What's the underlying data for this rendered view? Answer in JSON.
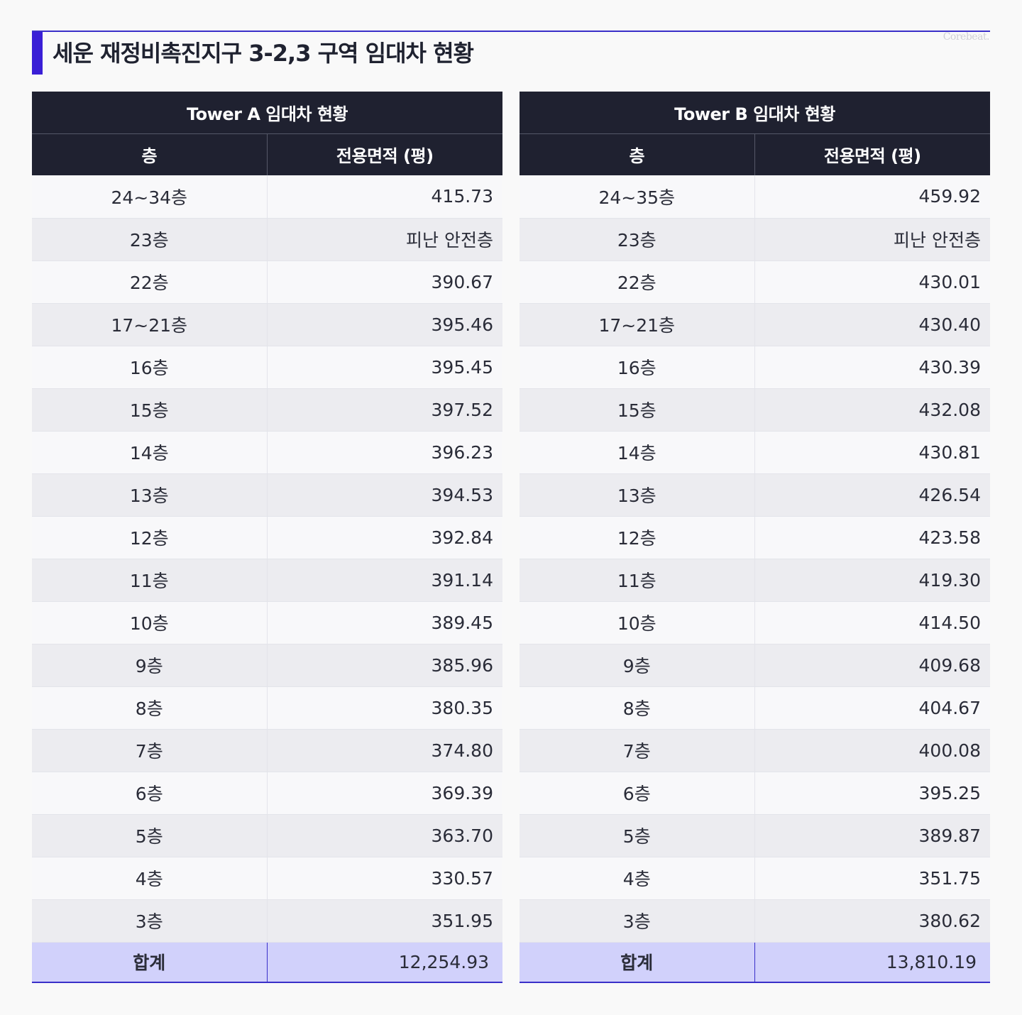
{
  "header": {
    "title": "세운 재정비촉진지구 3-2,3 구역 임대차 현황",
    "brand": "Corebeat.",
    "accent_color": "#3a1fd6"
  },
  "towers": [
    {
      "caption": "Tower A 임대차 현황",
      "columns": [
        "층",
        "전용면적 (평)"
      ],
      "rows": [
        [
          "24~34층",
          "415.73"
        ],
        [
          "23층",
          "피난 안전층"
        ],
        [
          "22층",
          "390.67"
        ],
        [
          "17~21층",
          "395.46"
        ],
        [
          "16층",
          "395.45"
        ],
        [
          "15층",
          "397.52"
        ],
        [
          "14층",
          "396.23"
        ],
        [
          "13층",
          "394.53"
        ],
        [
          "12층",
          "392.84"
        ],
        [
          "11층",
          "391.14"
        ],
        [
          "10층",
          "389.45"
        ],
        [
          "9층",
          "385.96"
        ],
        [
          "8층",
          "380.35"
        ],
        [
          "7층",
          "374.80"
        ],
        [
          "6층",
          "369.39"
        ],
        [
          "5층",
          "363.70"
        ],
        [
          "4층",
          "330.57"
        ],
        [
          "3층",
          "351.95"
        ]
      ],
      "total": [
        "합계",
        "12,254.93"
      ]
    },
    {
      "caption": "Tower B 임대차 현황",
      "columns": [
        "층",
        "전용면적 (평)"
      ],
      "rows": [
        [
          "24~35층",
          "459.92"
        ],
        [
          "23층",
          "피난 안전층"
        ],
        [
          "22층",
          "430.01"
        ],
        [
          "17~21층",
          "430.40"
        ],
        [
          "16층",
          "430.39"
        ],
        [
          "15층",
          "432.08"
        ],
        [
          "14층",
          "430.81"
        ],
        [
          "13층",
          "426.54"
        ],
        [
          "12층",
          "423.58"
        ],
        [
          "11층",
          "419.30"
        ],
        [
          "10층",
          "414.50"
        ],
        [
          "9층",
          "409.68"
        ],
        [
          "8층",
          "404.67"
        ],
        [
          "7층",
          "400.08"
        ],
        [
          "6층",
          "395.25"
        ],
        [
          "5층",
          "389.87"
        ],
        [
          "4층",
          "351.75"
        ],
        [
          "3층",
          "380.62"
        ]
      ],
      "total": [
        "합계",
        "13,810.19"
      ]
    }
  ]
}
